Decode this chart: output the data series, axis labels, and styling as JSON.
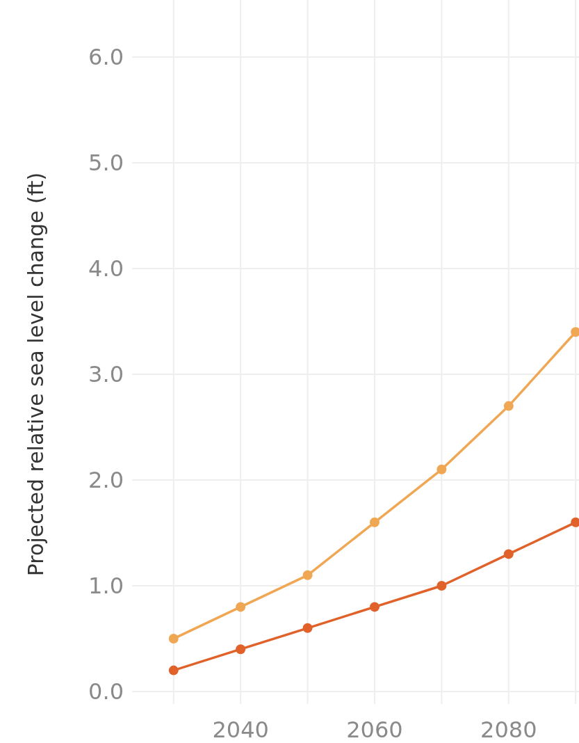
{
  "chart_data": {
    "type": "line",
    "ylabel": "Projected relative sea level change (ft)",
    "x": [
      2030,
      2040,
      2050,
      2060,
      2070,
      2080,
      2090
    ],
    "series": [
      {
        "color": "#f0a754",
        "values": [
          0.5,
          0.8,
          1.1,
          1.6,
          2.1,
          2.7,
          3.4
        ]
      },
      {
        "color": "#e0622a",
        "values": [
          0.2,
          0.4,
          0.6,
          0.8,
          1.0,
          1.3,
          1.6
        ]
      }
    ],
    "xlim": [
      2023.8,
      2090.5
    ],
    "ylim": [
      0,
      6
    ],
    "xticks": [
      {
        "value": 2030,
        "label": null
      },
      2040,
      {
        "value": 2050,
        "label": null
      },
      2060,
      {
        "value": 2070,
        "label": null
      },
      2080,
      {
        "value": 2090,
        "label": null
      }
    ],
    "yticks": [
      {
        "value": 0,
        "label": "0.0"
      },
      {
        "value": 1,
        "label": "1.0"
      },
      {
        "value": 2,
        "label": "2.0"
      },
      {
        "value": 3,
        "label": "3.0"
      },
      {
        "value": 4,
        "label": "4.0"
      },
      {
        "value": 5,
        "label": "5.0"
      },
      {
        "value": 6,
        "label": "6.0"
      }
    ],
    "grid": true,
    "marker": "circle",
    "line_style": "solid"
  }
}
